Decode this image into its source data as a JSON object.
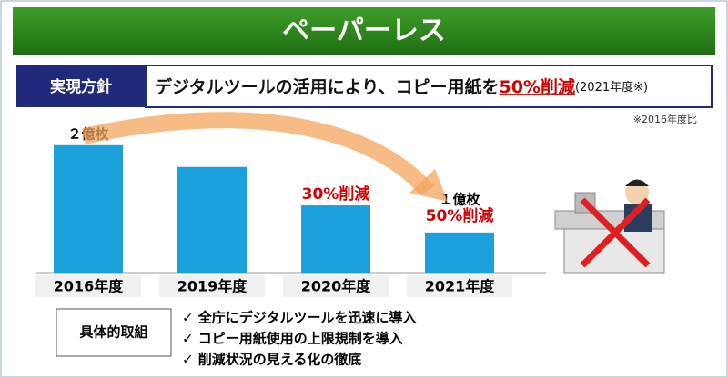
{
  "banner": {
    "title": "ペーパーレス"
  },
  "policy": {
    "label": "実現方針",
    "text": "デジタルツールの活用により、コピー用紙を",
    "highlight": "50%削減",
    "note": "(2021年度※)"
  },
  "footnote": "※2016年度比",
  "chart_data": {
    "type": "bar",
    "categories": [
      "2016年度",
      "2019年度",
      "2020年度",
      "2021年度"
    ],
    "values": [
      2,
      1.75,
      1.31,
      1
    ],
    "value_labels": [
      "２億枚",
      null,
      null,
      "１億枚"
    ],
    "annotations": [
      "30%削減",
      "50%削減"
    ],
    "color": "#1ca0dc",
    "ylim": [
      0.54,
      2.3
    ]
  },
  "actions": {
    "label": "具体的取組",
    "items": [
      "✓ 全庁にデジタルツールを迅速に導入",
      "✓ コピー用紙使用の上限規制を導入",
      "✓ 削減状況の見える化の徹底"
    ]
  }
}
